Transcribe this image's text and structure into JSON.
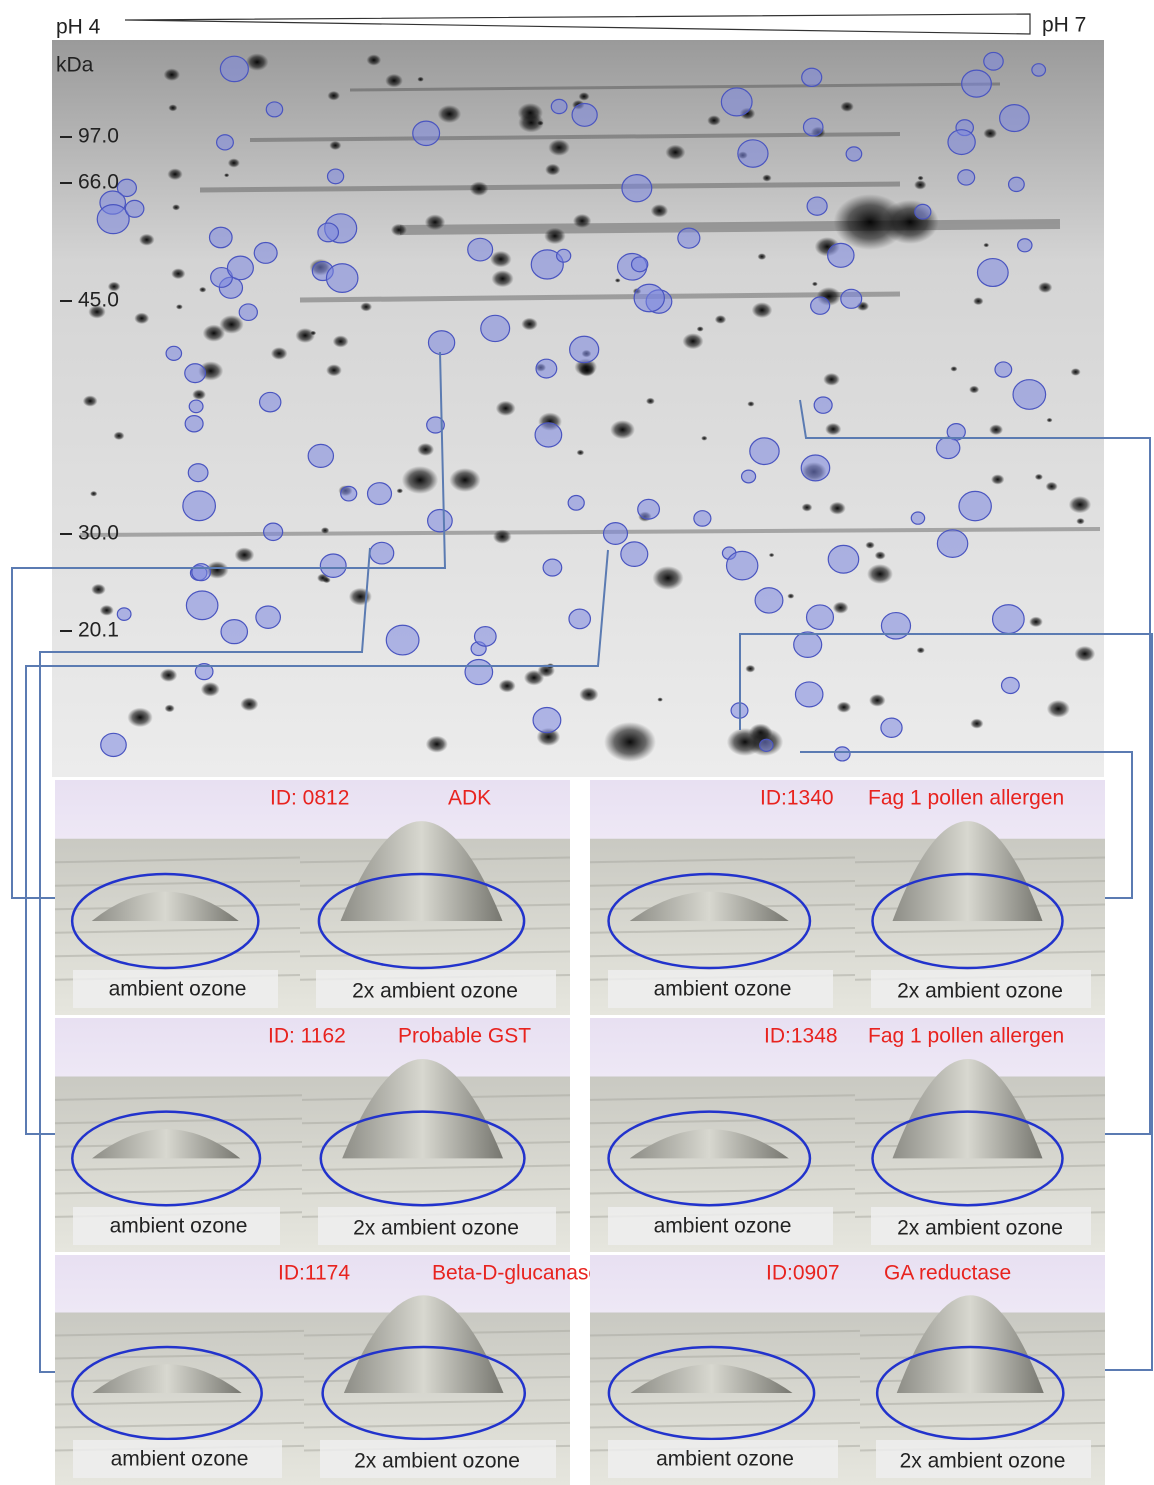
{
  "header": {
    "ph_left": "pH 4",
    "ph_right": "pH 7",
    "unit": "kDa"
  },
  "markers": [
    "97.0",
    "66.0",
    "45.0",
    "30.0",
    "20.1"
  ],
  "panels": [
    {
      "id": "ID: 0812",
      "protein": "ADK",
      "left_label": "ambient ozone",
      "right_label": "2x ambient ozone"
    },
    {
      "id": "ID:1340",
      "protein": "Fag 1 pollen allergen",
      "left_label": "ambient ozone",
      "right_label": "2x ambient ozone"
    },
    {
      "id": "ID: 1162",
      "protein": "Probable GST",
      "left_label": "ambient ozone",
      "right_label": "2x ambient ozone"
    },
    {
      "id": "ID:1348",
      "protein": "Fag 1 pollen allergen",
      "left_label": "ambient ozone",
      "right_label": "2x ambient ozone"
    },
    {
      "id": "ID:1174",
      "protein": "Beta-D-glucanase",
      "left_label": "ambient ozone",
      "right_label": "2x ambient ozone"
    },
    {
      "id": "ID:0907",
      "protein": "GA reductase",
      "left_label": "ambient ozone",
      "right_label": "2x ambient ozone"
    }
  ]
}
